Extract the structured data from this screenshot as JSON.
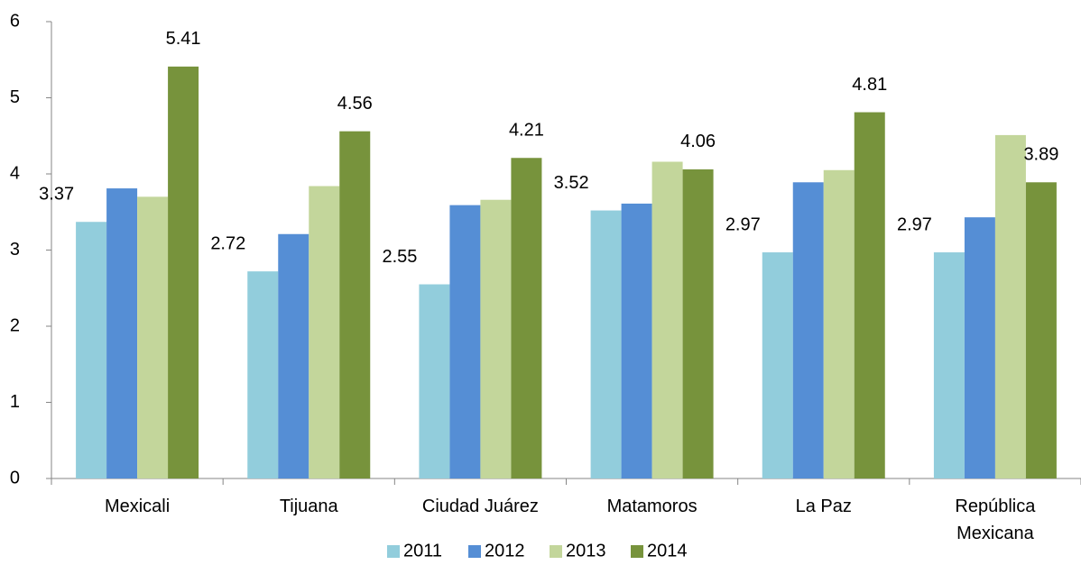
{
  "chart_data": {
    "type": "bar",
    "categories": [
      "Mexicali",
      "Tijuana",
      "Ciudad Juárez",
      "Matamoros",
      "La Paz",
      "República Mexicana"
    ],
    "series": [
      {
        "name": "2011",
        "color": "#92cddc",
        "values": [
          3.37,
          2.72,
          2.55,
          3.52,
          2.97,
          2.97
        ],
        "show_labels": true
      },
      {
        "name": "2012",
        "color": "#558ed5",
        "values": [
          3.81,
          3.21,
          3.59,
          3.61,
          3.89,
          3.43
        ],
        "show_labels": false
      },
      {
        "name": "2013",
        "color": "#c3d69b",
        "values": [
          3.7,
          3.84,
          3.66,
          4.16,
          4.05,
          4.51
        ],
        "show_labels": false
      },
      {
        "name": "2014",
        "color": "#77933c",
        "values": [
          5.41,
          4.56,
          4.21,
          4.06,
          4.81,
          3.89
        ],
        "show_labels": true
      }
    ],
    "ylim": [
      0,
      6
    ],
    "yticks": [
      0,
      1,
      2,
      3,
      4,
      5,
      6
    ],
    "grid": false,
    "legend": "bottom"
  }
}
